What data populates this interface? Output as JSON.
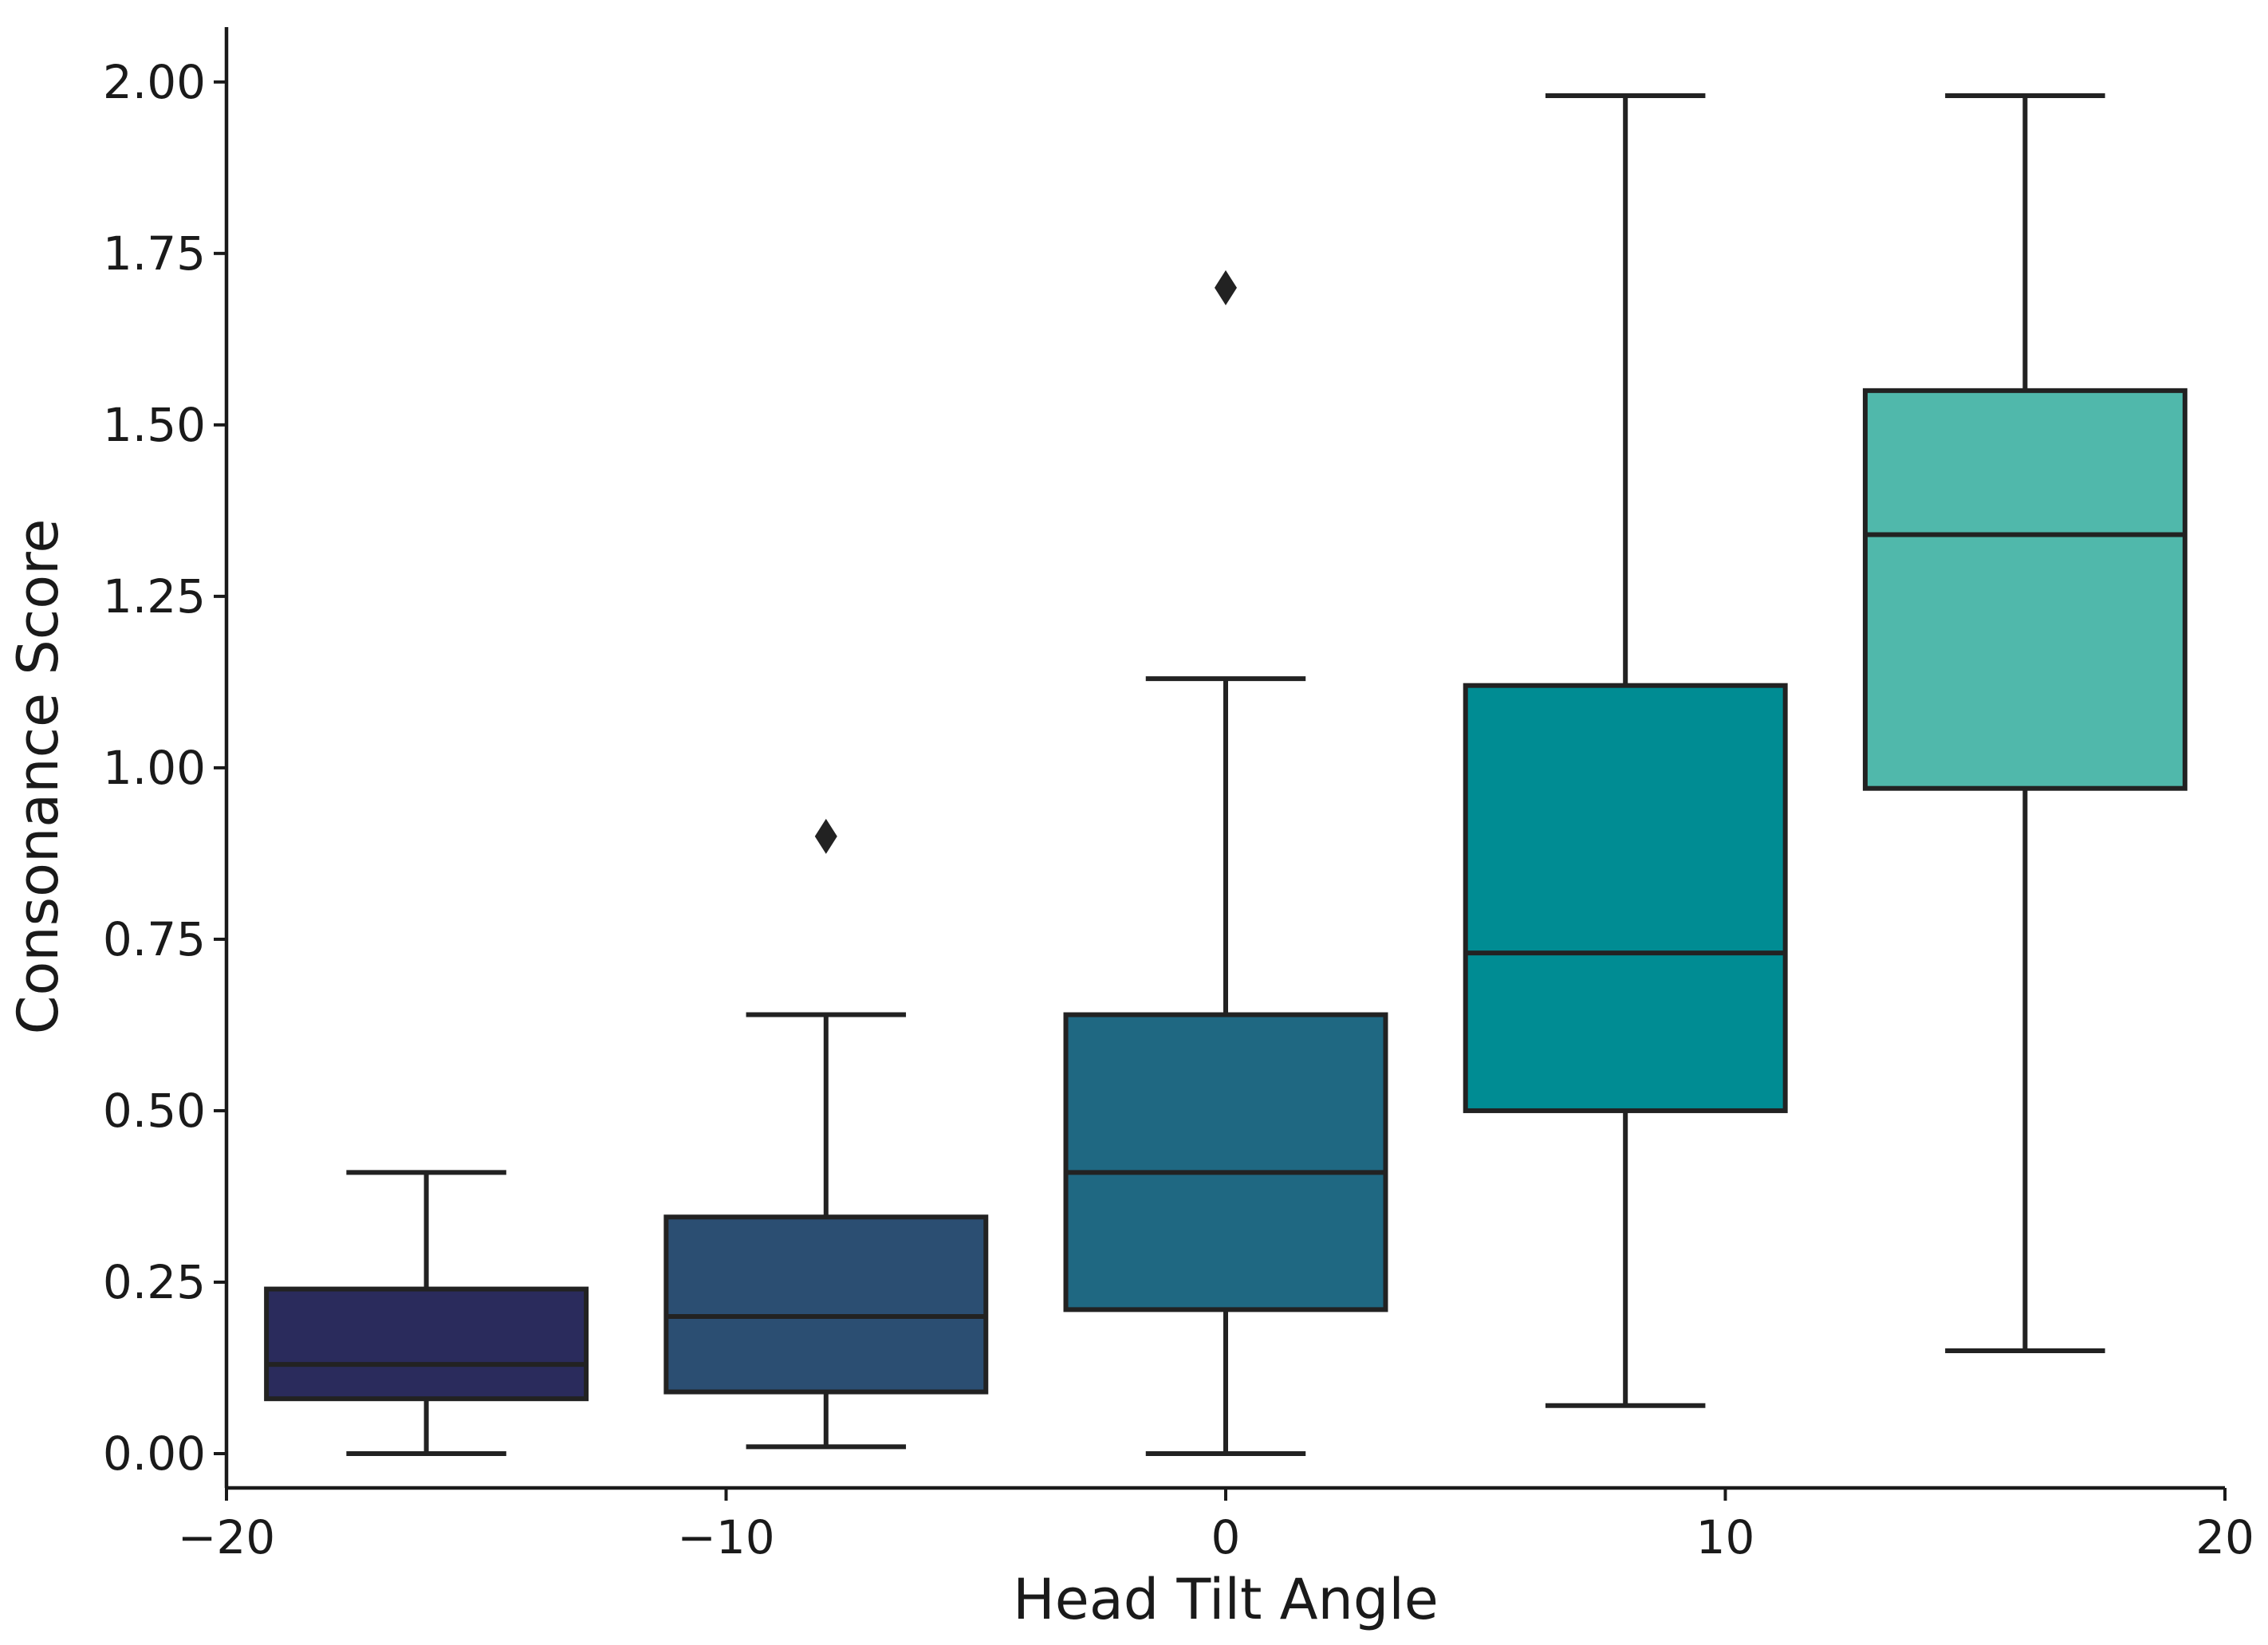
{
  "chart_data": {
    "type": "box",
    "title": "",
    "xlabel": "Head Tilt Angle",
    "ylabel": "Consonance Score",
    "xlim": [
      -20,
      20
    ],
    "ylim": [
      -0.05,
      2.08
    ],
    "x_ticks": [
      -20,
      -10,
      0,
      10,
      20
    ],
    "x_tick_labels": [
      "−20",
      "−10",
      "0",
      "10",
      "20"
    ],
    "y_ticks": [
      0,
      0.25,
      0.5,
      0.75,
      1.0,
      1.25,
      1.5,
      1.75,
      2.0
    ],
    "y_tick_labels": [
      "0.00",
      "0.25",
      "0.50",
      "0.75",
      "1.00",
      "1.25",
      "1.50",
      "1.75",
      "2.00"
    ],
    "box_width": 6.4,
    "boxes": [
      {
        "position": -16,
        "whisker_low": 0.0,
        "q1": 0.08,
        "median": 0.13,
        "q3": 0.24,
        "whisker_high": 0.41,
        "outliers": [],
        "color": "#2a2b5c"
      },
      {
        "position": -8,
        "whisker_low": 0.01,
        "q1": 0.09,
        "median": 0.2,
        "q3": 0.345,
        "whisker_high": 0.64,
        "outliers": [
          0.9
        ],
        "color": "#2b4e72"
      },
      {
        "position": 0,
        "whisker_low": 0.0,
        "q1": 0.21,
        "median": 0.41,
        "q3": 0.64,
        "whisker_high": 1.13,
        "outliers": [
          1.7
        ],
        "color": "#1f6882"
      },
      {
        "position": 8,
        "whisker_low": 0.07,
        "q1": 0.5,
        "median": 0.73,
        "q3": 1.12,
        "whisker_high": 1.98,
        "outliers": [],
        "color": "#008c93"
      },
      {
        "position": 16,
        "whisker_low": 0.15,
        "q1": 0.97,
        "median": 1.34,
        "q3": 1.55,
        "whisker_high": 1.98,
        "outliers": [],
        "color": "#50b8ab"
      }
    ]
  }
}
